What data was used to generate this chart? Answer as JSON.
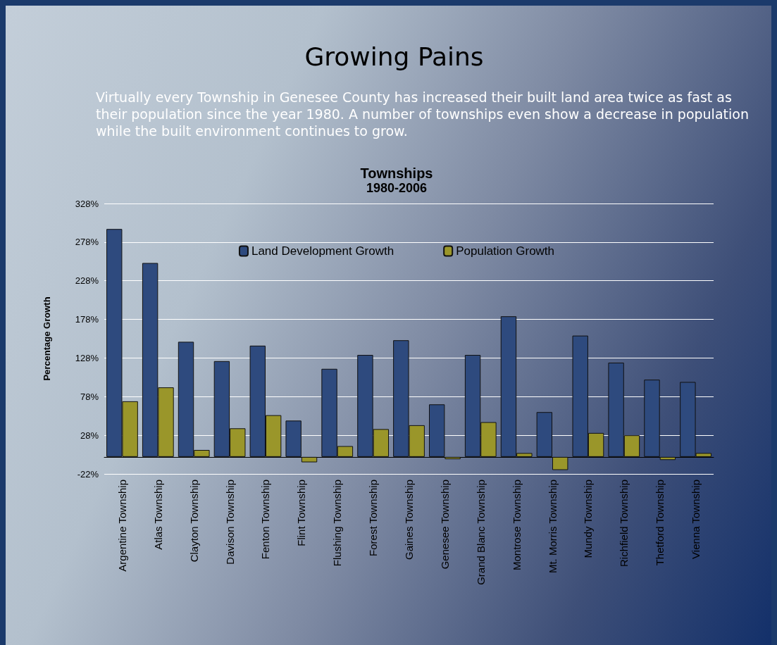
{
  "chart_data": {
    "type": "bar",
    "title": "Growing Pains",
    "subtitle": "Virtually every Township in Genesee County has increased their built land area twice as fast as their population since the year 1980.  A number of townships even show a decrease in population while the built environment continues to grow.",
    "annotations": [
      "Townships",
      "1980-2006"
    ],
    "ylabel": "Percentage Growth",
    "categories": [
      "Argentine Township",
      "Atlas Township",
      "Clayton Township",
      "Davison Township",
      "Fenton Township",
      "Flint Township",
      "Flushing Township",
      "Forest Township",
      "Gaines Township",
      "Genesee Township",
      "Grand Blanc Township",
      "Montrose Township",
      "Mt. Morris Township",
      "Mundy Township",
      "Richfield Township",
      "Thetford Township",
      "Vienna Township"
    ],
    "series": [
      {
        "name": "Land Development Growth",
        "color": "#2e4a7e",
        "values": [
          295,
          251,
          149,
          124,
          144,
          47,
          114,
          132,
          151,
          68,
          132,
          182,
          58,
          157,
          122,
          100,
          97
        ]
      },
      {
        "name": "Population Growth",
        "color": "#9a962a",
        "values": [
          72,
          90,
          9,
          37,
          54,
          -7,
          14,
          36,
          41,
          -3,
          45,
          5,
          -17,
          31,
          28,
          -4,
          5
        ]
      }
    ],
    "ylim": [
      -22,
      328
    ],
    "yticks": [
      {
        "value": -22,
        "label": "-22%"
      },
      {
        "value": 28,
        "label": "28%"
      },
      {
        "value": 78,
        "label": "78%"
      },
      {
        "value": 128,
        "label": "128%"
      },
      {
        "value": 178,
        "label": "178%"
      },
      {
        "value": 228,
        "label": "228%"
      },
      {
        "value": 278,
        "label": "278%"
      },
      {
        "value": 328,
        "label": "328%"
      }
    ],
    "grid": "y",
    "legend": "top"
  }
}
